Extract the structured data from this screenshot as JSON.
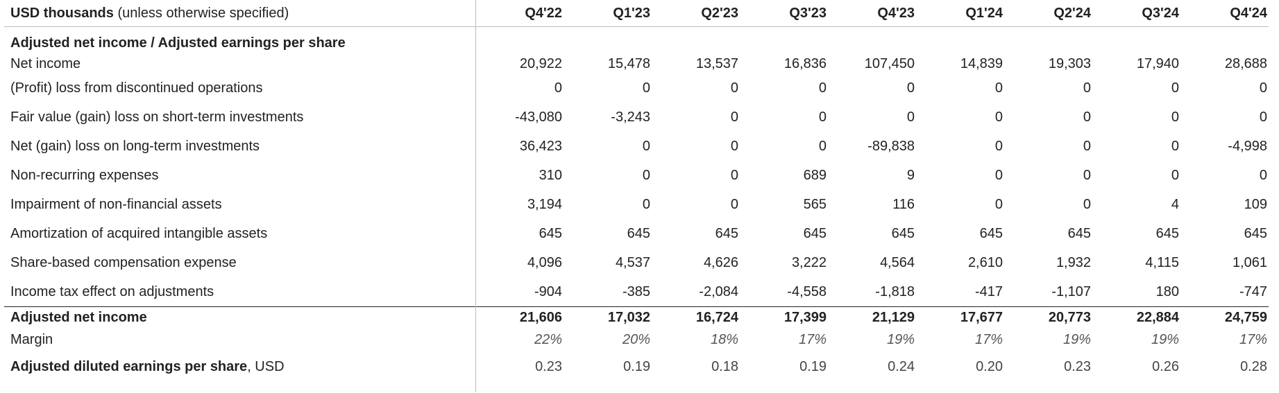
{
  "header": {
    "unit_bold": "USD thousands",
    "unit_note": " (unless otherwise specified)",
    "quarters": [
      "Q4'22",
      "Q1'23",
      "Q2'23",
      "Q3'23",
      "Q4'23",
      "Q1'24",
      "Q2'24",
      "Q3'24",
      "Q4'24"
    ]
  },
  "section_title": "Adjusted net income / Adjusted earnings per share",
  "rows": [
    {
      "label": "Net income",
      "values": [
        "20,922",
        "15,478",
        "13,537",
        "16,836",
        "107,450",
        "14,839",
        "19,303",
        "17,940",
        "28,688"
      ]
    },
    {
      "label": "(Profit) loss from discontinued operations",
      "values": [
        "0",
        "0",
        "0",
        "0",
        "0",
        "0",
        "0",
        "0",
        "0"
      ]
    },
    {
      "label": "Fair value (gain) loss on short-term investments",
      "values": [
        "-43,080",
        "-3,243",
        "0",
        "0",
        "0",
        "0",
        "0",
        "0",
        "0"
      ]
    },
    {
      "label": "Net (gain) loss on long-term investments",
      "values": [
        "36,423",
        "0",
        "0",
        "0",
        "-89,838",
        "0",
        "0",
        "0",
        "-4,998"
      ]
    },
    {
      "label": "Non-recurring expenses",
      "values": [
        "310",
        "0",
        "0",
        "689",
        "9",
        "0",
        "0",
        "0",
        "0"
      ]
    },
    {
      "label": "Impairment of non-financial assets",
      "values": [
        "3,194",
        "0",
        "0",
        "565",
        "116",
        "0",
        "0",
        "4",
        "109"
      ]
    },
    {
      "label": "Amortization of acquired intangible assets",
      "values": [
        "645",
        "645",
        "645",
        "645",
        "645",
        "645",
        "645",
        "645",
        "645"
      ]
    },
    {
      "label": "Share-based compensation expense",
      "values": [
        "4,096",
        "4,537",
        "4,626",
        "3,222",
        "4,564",
        "2,610",
        "1,932",
        "4,115",
        "1,061"
      ]
    },
    {
      "label": "Income tax effect on adjustments",
      "values": [
        "-904",
        "-385",
        "-2,084",
        "-4,558",
        "-1,818",
        "-417",
        "-1,107",
        "180",
        "-747"
      ]
    }
  ],
  "total": {
    "label": "Adjusted net income",
    "values": [
      "21,606",
      "17,032",
      "16,724",
      "17,399",
      "21,129",
      "17,677",
      "20,773",
      "22,884",
      "24,759"
    ]
  },
  "margin": {
    "label": "Margin",
    "values": [
      "22%",
      "20%",
      "18%",
      "17%",
      "19%",
      "17%",
      "19%",
      "19%",
      "17%"
    ]
  },
  "eps": {
    "label_bold": "Adjusted diluted earnings per share",
    "label_unit": ", USD",
    "values": [
      "0.23",
      "0.19",
      "0.18",
      "0.19",
      "0.24",
      "0.20",
      "0.23",
      "0.26",
      "0.28"
    ]
  }
}
